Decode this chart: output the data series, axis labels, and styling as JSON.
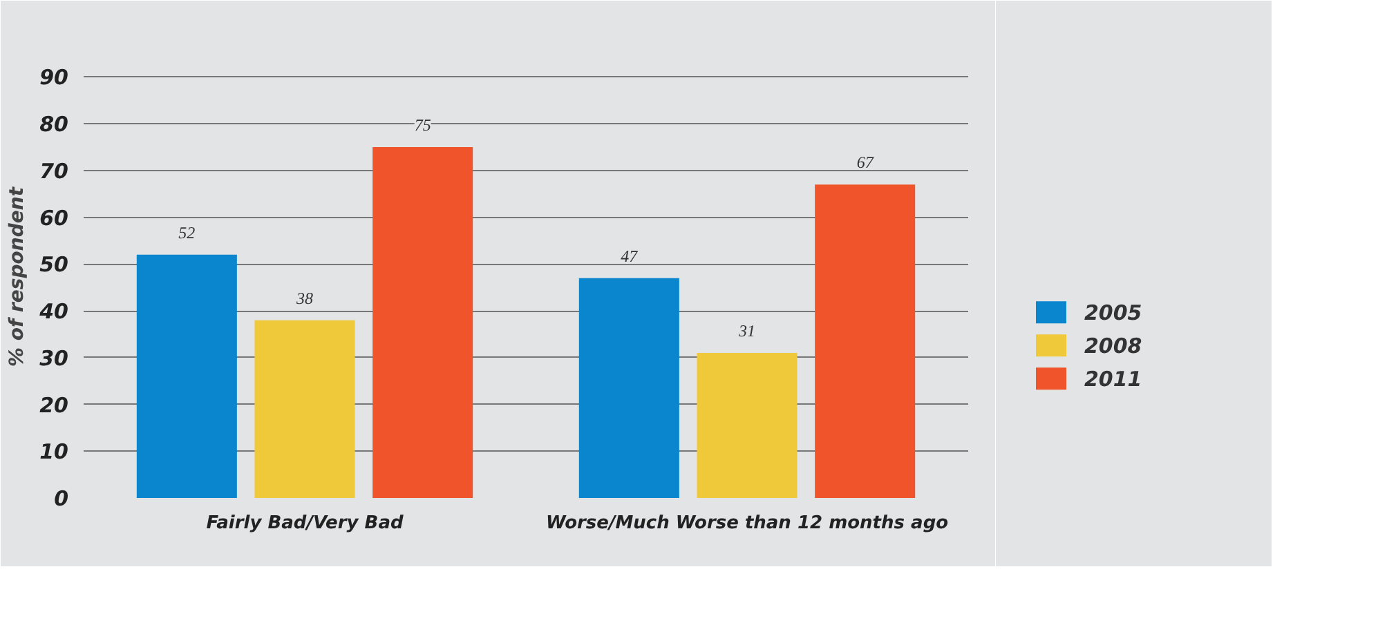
{
  "chart_data": {
    "type": "bar",
    "ylabel": "% of respondent",
    "categories": [
      "Fairly Bad/Very Bad",
      "Worse/Much Worse than 12 months ago"
    ],
    "series": [
      {
        "name": "2005",
        "color": "#0a86cf",
        "values": [
          52,
          47
        ]
      },
      {
        "name": "2008",
        "color": "#f0c93a",
        "values": [
          38,
          31
        ]
      },
      {
        "name": "2011",
        "color": "#f0542a",
        "values": [
          75,
          67
        ]
      }
    ],
    "ylim": [
      0,
      90
    ],
    "yticks": [
      0,
      10,
      20,
      30,
      40,
      50,
      60,
      70,
      80,
      90
    ],
    "grid": "y",
    "legend": "right",
    "data_labels": true
  }
}
